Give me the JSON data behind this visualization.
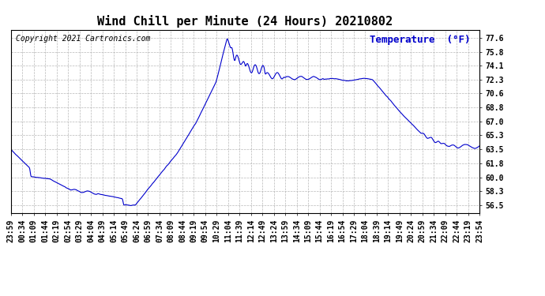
{
  "title": "Wind Chill per Minute (24 Hours) 20210802",
  "ylabel": "Temperature  (°F)",
  "copyright_text": "Copyright 2021 Cartronics.com",
  "line_color": "#0000cc",
  "ylabel_color": "#0000cc",
  "background_color": "#ffffff",
  "grid_color": "#b0b0b0",
  "yticks": [
    56.5,
    58.3,
    60.0,
    61.8,
    63.5,
    65.3,
    67.0,
    68.8,
    70.6,
    72.3,
    74.1,
    75.8,
    77.6
  ],
  "ylim": [
    55.5,
    78.6
  ],
  "title_fontsize": 11,
  "ylabel_fontsize": 9,
  "tick_fontsize": 7,
  "copyright_fontsize": 7,
  "xtick_labels": [
    "23:59",
    "00:34",
    "01:09",
    "01:44",
    "02:19",
    "02:54",
    "03:29",
    "04:04",
    "04:39",
    "05:14",
    "05:49",
    "06:24",
    "06:59",
    "07:34",
    "08:09",
    "08:44",
    "09:19",
    "09:54",
    "10:29",
    "11:04",
    "11:39",
    "12:14",
    "12:49",
    "13:24",
    "13:59",
    "14:34",
    "15:09",
    "15:44",
    "16:19",
    "16:54",
    "17:29",
    "18:04",
    "18:39",
    "19:14",
    "19:49",
    "20:24",
    "20:59",
    "21:34",
    "22:09",
    "22:44",
    "23:19",
    "23:54"
  ]
}
